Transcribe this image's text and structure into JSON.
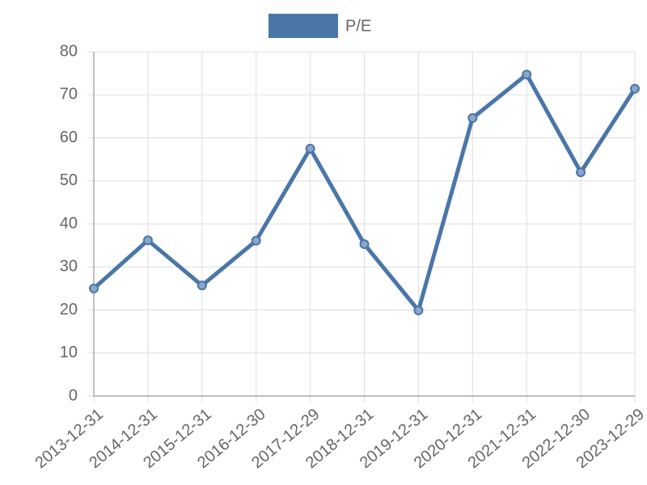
{
  "chart_data": {
    "type": "line",
    "categories": [
      "2013-12-31",
      "2014-12-31",
      "2015-12-31",
      "2016-12-30",
      "2017-12-29",
      "2018-12-31",
      "2019-12-31",
      "2020-12-31",
      "2021-12-31",
      "2022-12-30",
      "2023-12-29"
    ],
    "series": [
      {
        "name": "P/E",
        "color": "#4a76a8",
        "values": [
          25.0,
          36.2,
          25.7,
          36.1,
          57.5,
          35.3,
          19.9,
          64.6,
          74.7,
          52.0,
          71.4
        ]
      }
    ],
    "ylim": [
      0,
      80
    ],
    "yticks": [
      0,
      10,
      20,
      30,
      40,
      50,
      60,
      70,
      80
    ],
    "grid": true,
    "legend": "top"
  }
}
